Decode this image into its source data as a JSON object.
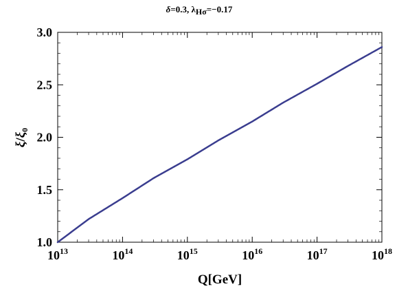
{
  "chart_data": {
    "type": "line",
    "title": {
      "delta_symbol": "δ",
      "delta_value": "=0.3, ",
      "lambda_symbol": "λ",
      "lambda_subscript": "Hσ",
      "lambda_value": "=−0.17"
    },
    "xlabel": "Q[GeV]",
    "ylabel": {
      "numerator": "ξ",
      "denominator": "ξ",
      "denominator_subscript": "0"
    },
    "x_scale": "log",
    "xlim": [
      10000000000000.0,
      1e+18
    ],
    "ylim": [
      1.0,
      3.0
    ],
    "x_ticks": [
      {
        "value": 10000000000000.0,
        "base": "10",
        "exp": "13"
      },
      {
        "value": 100000000000000.0,
        "base": "10",
        "exp": "14"
      },
      {
        "value": 1000000000000000.0,
        "base": "10",
        "exp": "15"
      },
      {
        "value": 1e+16,
        "base": "10",
        "exp": "16"
      },
      {
        "value": 1e+17,
        "base": "10",
        "exp": "17"
      },
      {
        "value": 1e+18,
        "base": "10",
        "exp": "18"
      }
    ],
    "y_ticks": [
      "1.0",
      "1.5",
      "2.0",
      "2.5",
      "3.0"
    ],
    "grid": false,
    "series": [
      {
        "color": "#3a3d8f",
        "x": [
          10000000000000.0,
          30000000000000.0,
          100000000000000.0,
          300000000000000.0,
          1000000000000000.0,
          3000000000000000.0,
          1e+16,
          3e+16,
          1e+17,
          3e+17,
          1e+18
        ],
        "y": [
          1.0,
          1.22,
          1.42,
          1.61,
          1.79,
          1.97,
          2.15,
          2.33,
          2.51,
          2.68,
          2.86
        ]
      }
    ]
  }
}
